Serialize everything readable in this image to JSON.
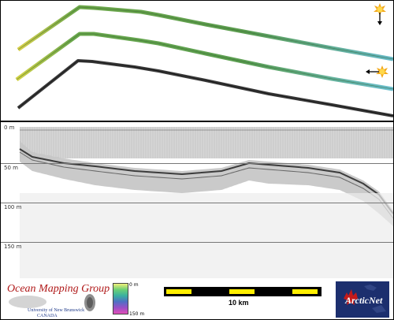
{
  "profile": {
    "depth_labels": [
      "0 m",
      "50 m",
      "100 m",
      "150 m"
    ]
  },
  "logo_left": {
    "title": "Ocean Mapping Group",
    "line1": "University of New Brunswick",
    "line2": "CANADA"
  },
  "colorbar": {
    "min_label": "0 m",
    "max_label": "150 m"
  },
  "scale_bar": {
    "label": "10 km",
    "colors": [
      "#ffee00",
      "#000000"
    ]
  },
  "logo_right": {
    "text": "ArcticNet",
    "accent": "#c41a1a",
    "background": "#1c2f6e"
  },
  "icons": {
    "sun_down": "sun-with-down-arrow-icon",
    "sun_left": "sun-with-left-arrow-icon"
  },
  "colors": {
    "track_green_start": "#d8d04a",
    "track_green_end": "#63b6c6",
    "track_gray": "#3a3a3a"
  }
}
